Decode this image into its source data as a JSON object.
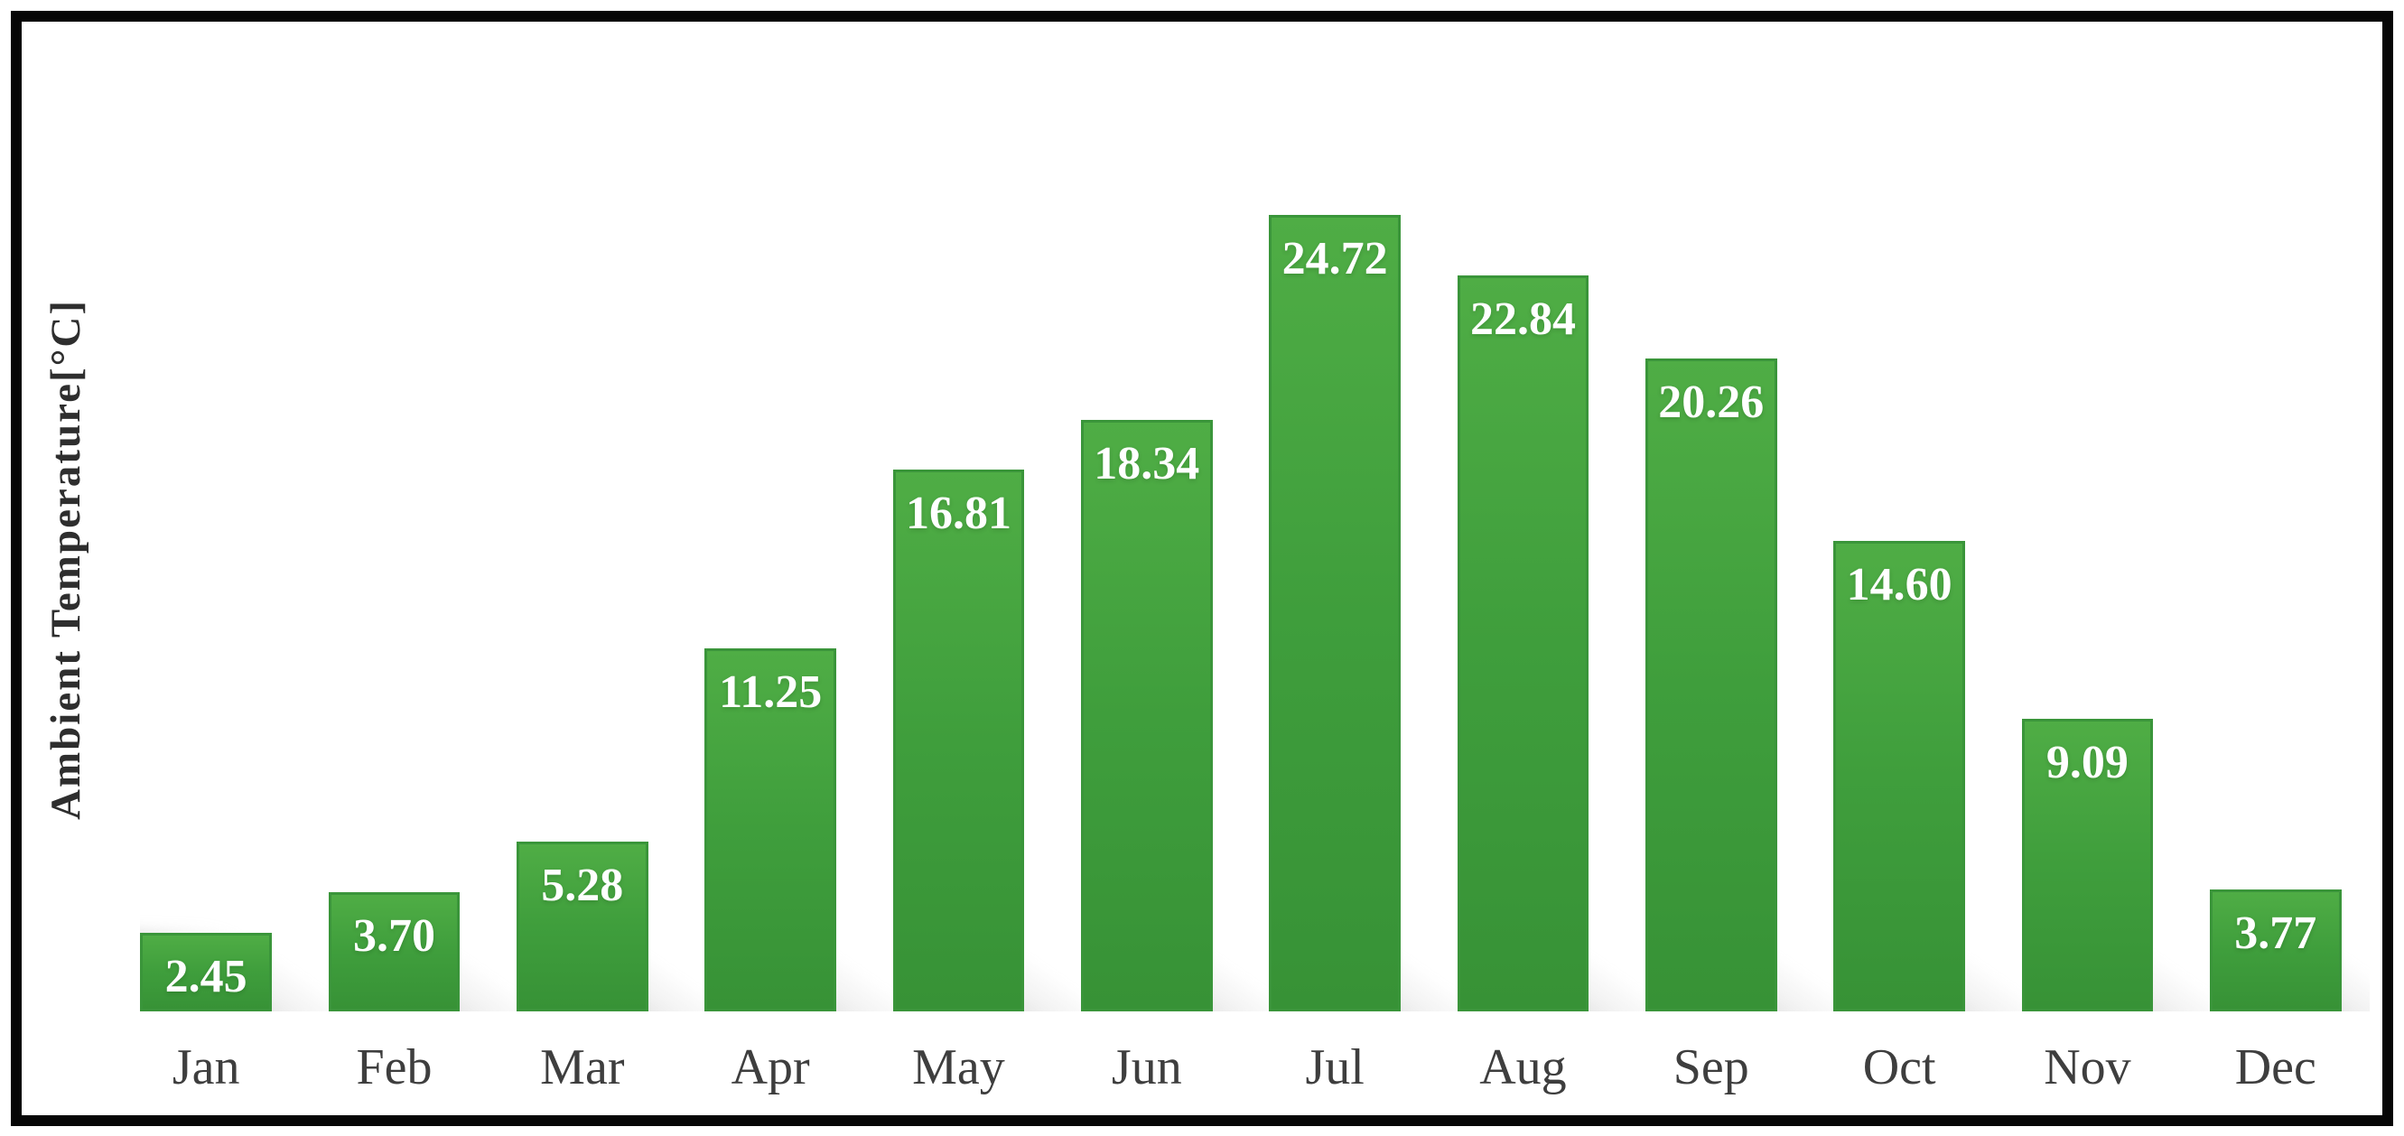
{
  "chart_data": {
    "type": "bar",
    "title": "",
    "xlabel": "",
    "ylabel": "Ambient Temperature[°C]",
    "categories": [
      "Jan",
      "Feb",
      "Mar",
      "Apr",
      "May",
      "Jun",
      "Jul",
      "Aug",
      "Sep",
      "Oct",
      "Nov",
      "Dec"
    ],
    "values": [
      2.45,
      3.7,
      5.28,
      11.25,
      16.81,
      18.34,
      24.72,
      22.84,
      20.26,
      14.6,
      9.09,
      3.77
    ],
    "value_labels": [
      "2.45",
      "3.70",
      "5.28",
      "11.25",
      "16.81",
      "18.34",
      "24.72",
      "22.84",
      "20.26",
      "14.60",
      "9.09",
      "3.77"
    ],
    "ylim": [
      0,
      25
    ],
    "grid": false,
    "legend": null,
    "axes_visible": false,
    "bar_color": "#3f9e3c",
    "bar_edge_color": "#3a953a",
    "value_label_color": "#ffffff",
    "tick_label_color": "#3e3e3e",
    "axis_title_color": "#2e2e2e",
    "shadow_style": "perspective bottom-right gray",
    "frame_border_color": "#060606",
    "background_color": "#ffffff"
  }
}
